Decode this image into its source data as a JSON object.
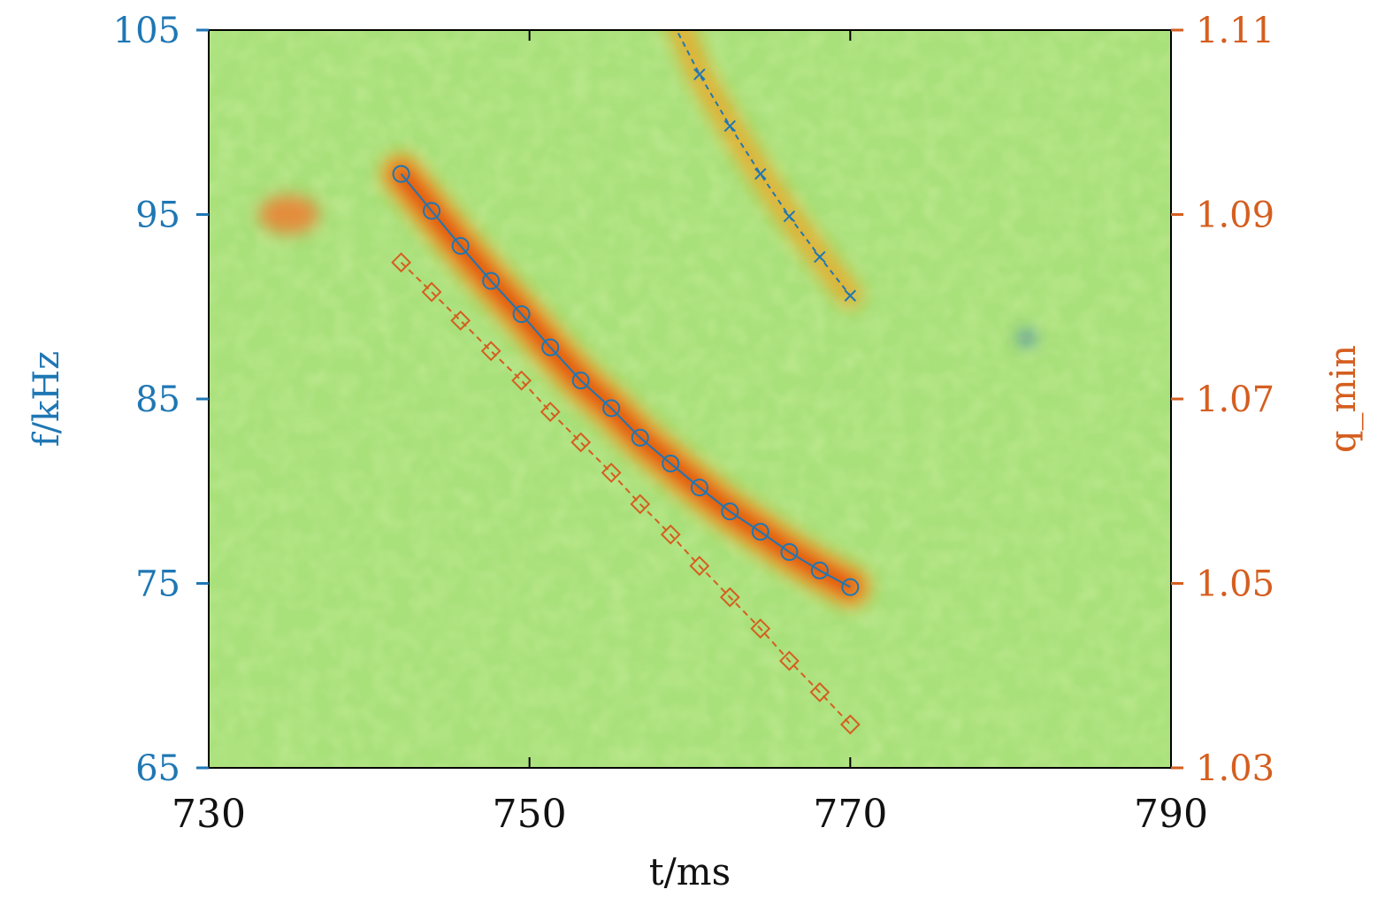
{
  "chart_data": {
    "type": "scatter",
    "background": "spectrogram",
    "x_axis": {
      "label": "t/ms",
      "range": [
        730,
        790
      ],
      "ticks": [
        730,
        750,
        770,
        790
      ],
      "tick_labels": [
        "730",
        "750",
        "770",
        "790"
      ]
    },
    "y_axis_left": {
      "label": "f/kHz",
      "range": [
        65,
        105
      ],
      "ticks": [
        65,
        75,
        85,
        95,
        105
      ],
      "tick_labels": [
        "65",
        "75",
        "85",
        "95",
        "105"
      ],
      "color": "#1f77b4"
    },
    "y_axis_right": {
      "label": "q_min",
      "range": [
        1.03,
        1.11
      ],
      "ticks": [
        1.03,
        1.05,
        1.07,
        1.09,
        1.11
      ],
      "tick_labels": [
        "1.03",
        "1.05",
        "1.07",
        "1.09",
        "1.11"
      ],
      "color": "#d55e1f"
    },
    "series": [
      {
        "axis": "left",
        "marker": "circle",
        "line": "solid",
        "color": "#1f77b4",
        "x": [
          742.0,
          743.9,
          745.7,
          747.6,
          749.5,
          751.3,
          753.2,
          755.1,
          756.9,
          758.8,
          760.6,
          762.5,
          764.4,
          766.2,
          768.1,
          770.0
        ],
        "y": [
          97.2,
          95.2,
          93.3,
          91.4,
          89.6,
          87.8,
          86.0,
          84.5,
          82.9,
          81.5,
          80.2,
          78.9,
          77.8,
          76.7,
          75.7,
          74.8
        ]
      },
      {
        "axis": "right",
        "marker": "diamond",
        "line": "dashed",
        "color": "#d55e1f",
        "x": [
          742.0,
          743.9,
          745.7,
          747.6,
          749.5,
          751.3,
          753.2,
          755.1,
          756.9,
          758.8,
          760.6,
          762.5,
          764.4,
          766.2,
          768.1,
          770.0
        ],
        "y": [
          1.0848,
          1.0816,
          1.0785,
          1.0752,
          1.072,
          1.0686,
          1.0653,
          1.062,
          1.0586,
          1.0553,
          1.0519,
          1.0485,
          1.0451,
          1.0416,
          1.0382,
          1.0347
        ]
      },
      {
        "axis": "left",
        "marker": "cross",
        "line": "dashed",
        "color": "#1f77b4",
        "x": [
          760.6,
          762.5,
          764.4,
          766.2,
          768.1,
          770.0
        ],
        "y": [
          102.6,
          99.8,
          97.2,
          94.9,
          92.7,
          90.6
        ]
      }
    ],
    "colormap": [
      "#1a4cc8",
      "#2fa7e6",
      "#41d3d8",
      "#7fe08a",
      "#c6ec4a",
      "#f4e426",
      "#f7a41c",
      "#ea4a12",
      "#c21a08"
    ]
  }
}
